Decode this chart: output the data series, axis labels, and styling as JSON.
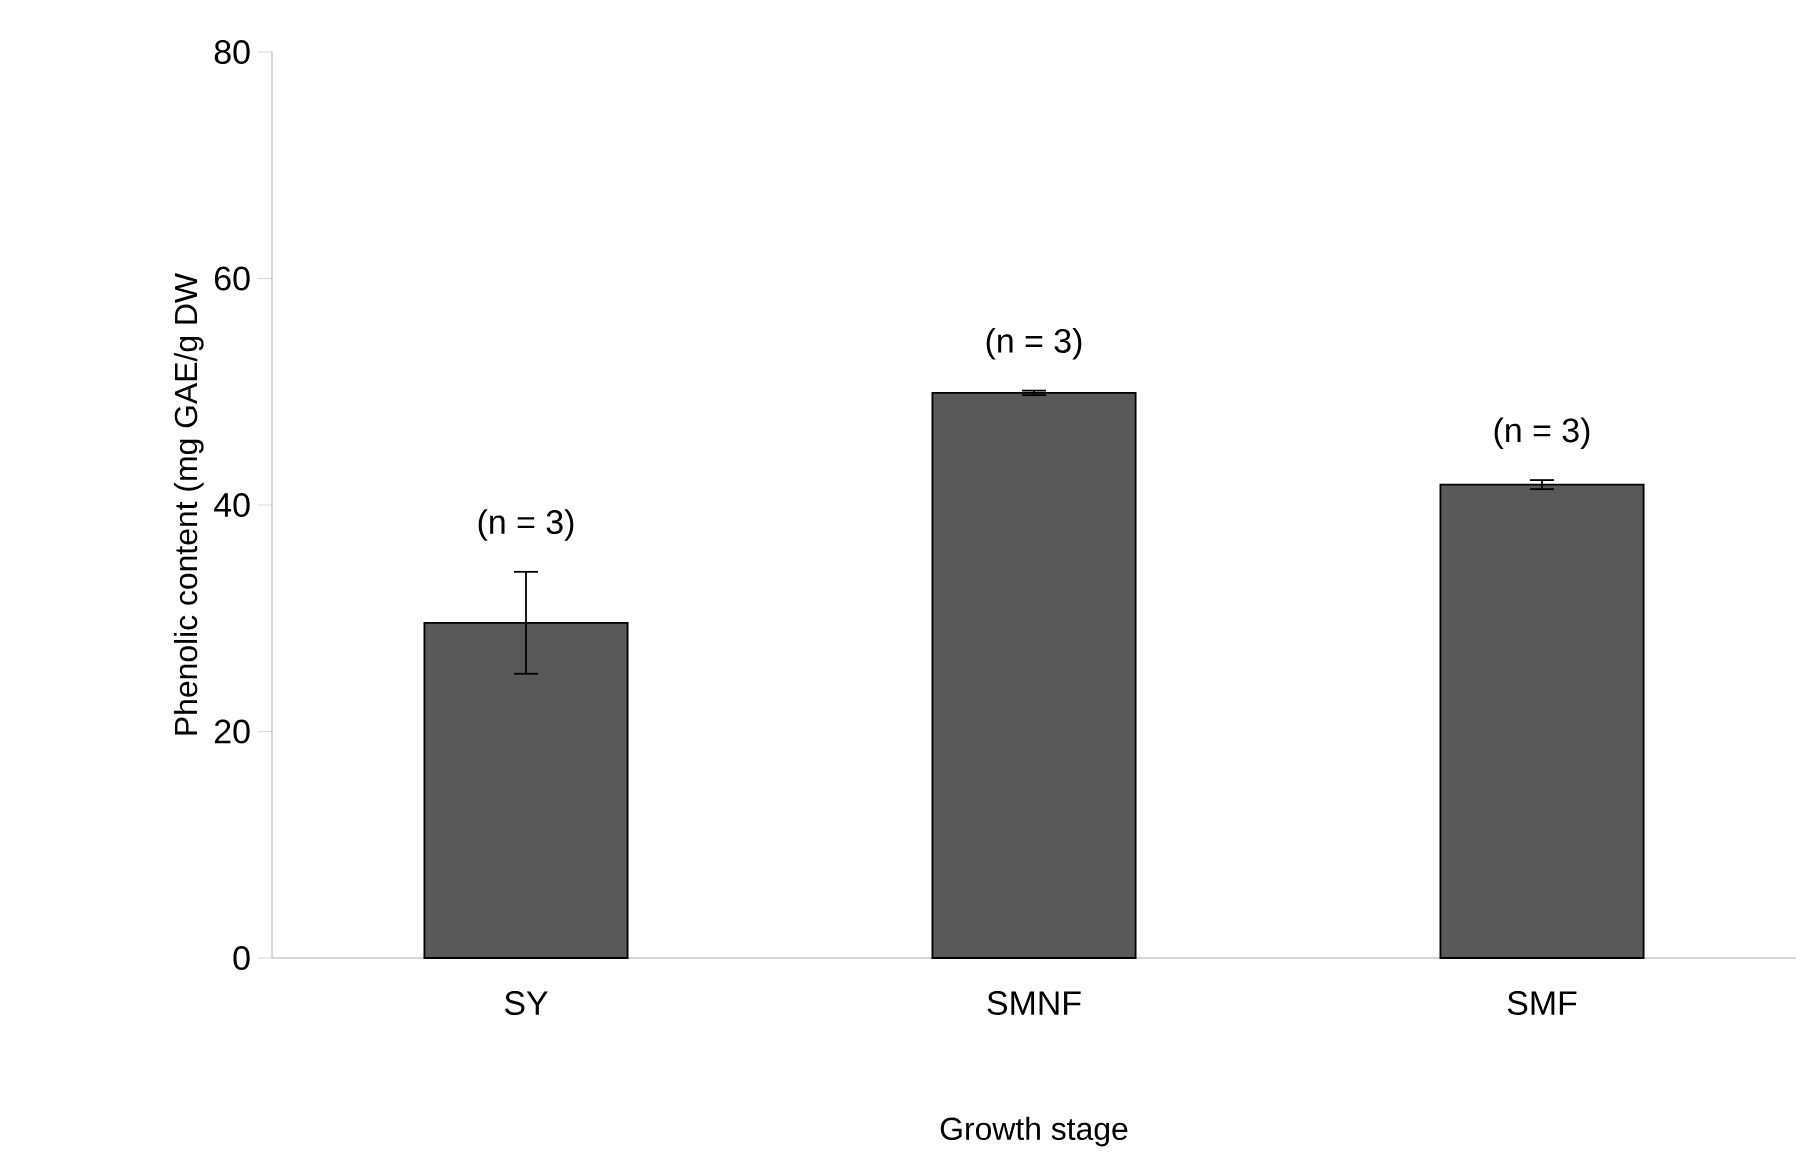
{
  "chart_data": {
    "type": "bar",
    "xlabel": "Growth stage",
    "ylabel": "Phenolic content (mg GAE/g DW",
    "categories": [
      "SY",
      "SMNF",
      "SMF"
    ],
    "values": [
      29.6,
      49.9,
      41.8
    ],
    "errors": [
      4.5,
      0.2,
      0.4
    ],
    "color": "#595959",
    "ylim": [
      0,
      80
    ],
    "yticks": [
      0,
      20,
      40,
      60,
      80
    ],
    "grid": false,
    "annotations": [
      "(n = 3)",
      "(n = 3)",
      "(n = 3)"
    ]
  }
}
